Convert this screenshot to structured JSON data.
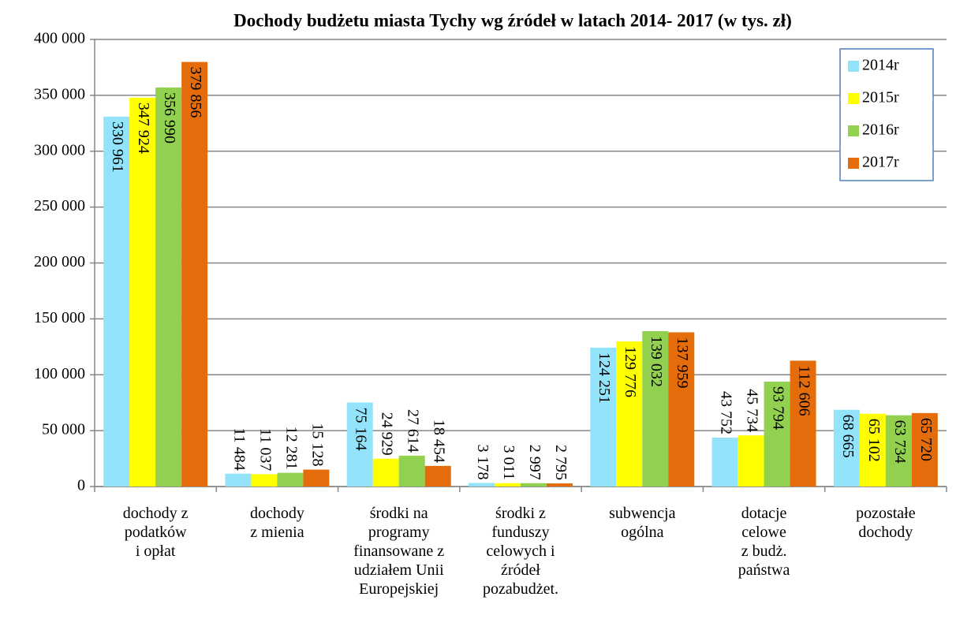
{
  "chart_data": {
    "type": "bar",
    "title": "Dochody budżetu miasta Tychy wg źródeł w latach 2014- 2017 (w tys. zł)",
    "categories": [
      "dochody z\npodatków\ni opłat",
      "dochody\nz mienia",
      "środki na\nprogramy\nfinansowane z\nudziałem Unii\nEuropejskiej",
      "środki z\nfunduszy\ncelowych i\nźródeł\npozabudżet.",
      "subwencja\nogólna",
      "dotacje\ncelowe\nz budż.\npaństwa",
      "pozostałe\ndochody"
    ],
    "series": [
      {
        "name": "2014r",
        "color": "#93e3fb",
        "values": [
          330961,
          11484,
          75164,
          3178,
          124251,
          43752,
          68665
        ],
        "value_labels": [
          "330 961",
          "11 484",
          "75 164",
          "3 178",
          "124 251",
          "43 752",
          "68 665"
        ]
      },
      {
        "name": "2015r",
        "color": "#ffff00",
        "values": [
          347924,
          11037,
          24929,
          3011,
          129776,
          45734,
          65102
        ],
        "value_labels": [
          "347 924",
          "11 037",
          "24 929",
          "3 011",
          "129 776",
          "45 734",
          "65 102"
        ]
      },
      {
        "name": "2016r",
        "color": "#92d050",
        "values": [
          356990,
          12281,
          27614,
          2997,
          139032,
          93794,
          63734
        ],
        "value_labels": [
          "356 990",
          "12 281",
          "27 614",
          "2 997",
          "139 032",
          "93 794",
          "63 734"
        ]
      },
      {
        "name": "2017r",
        "color": "#e46c0a",
        "values": [
          379856,
          15128,
          18454,
          2795,
          137959,
          112606,
          65720
        ],
        "value_labels": [
          "379 856",
          "15 128",
          "18 454",
          "2 795",
          "137 959",
          "112 606",
          "65 720"
        ]
      }
    ],
    "ylim": [
      0,
      400000
    ],
    "yticks": [
      0,
      {
        "value": 50000,
        "label": "50 000"
      },
      {
        "value": 100000,
        "label": "100 000"
      },
      {
        "value": 150000,
        "label": "150 000"
      },
      {
        "value": 200000,
        "label": "200 000"
      },
      {
        "value": 250000,
        "label": "250 000"
      },
      {
        "value": 300000,
        "label": "300 000"
      },
      {
        "value": 350000,
        "label": "350 000"
      },
      {
        "value": 400000,
        "label": "400 000"
      }
    ],
    "grid": true,
    "legend": "top-right"
  }
}
